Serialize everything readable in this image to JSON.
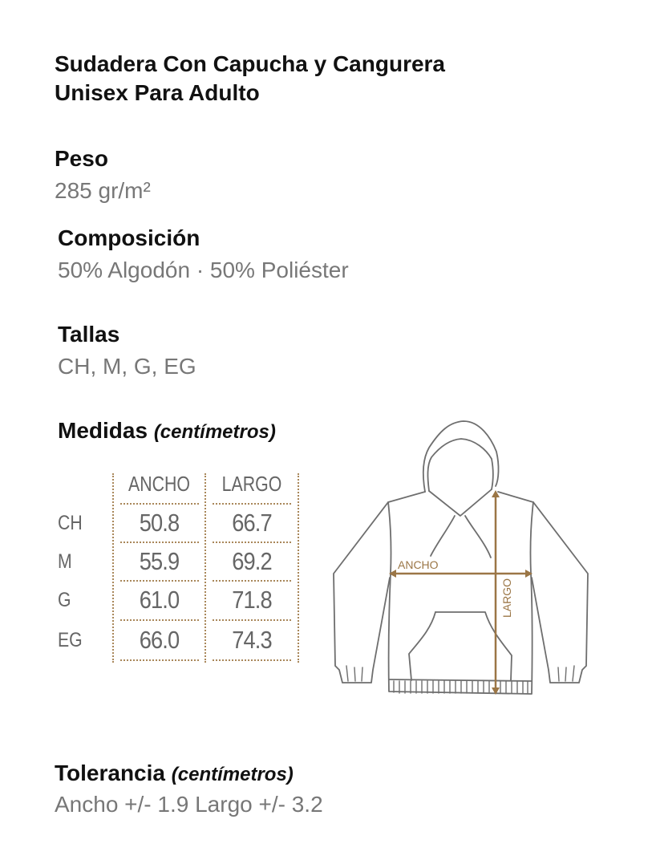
{
  "title_lines": [
    "Sudadera Con Capucha y Cangurera",
    "Unisex Para Adulto"
  ],
  "peso": {
    "label": "Peso",
    "value": "285 gr/m²"
  },
  "composicion": {
    "label": "Composición",
    "value": "50% Algodón · 50% Poliéster"
  },
  "tallas": {
    "label": "Tallas",
    "value": "CH, M, G, EG"
  },
  "medidas": {
    "label": "Medidas",
    "unit": "(centímetros)",
    "columns": [
      "ANCHO",
      "LARGO"
    ],
    "rows": [
      {
        "size": "CH",
        "ancho": "50.8",
        "largo": "66.7"
      },
      {
        "size": "M",
        "ancho": "55.9",
        "largo": "69.2"
      },
      {
        "size": "G",
        "ancho": "61.0",
        "largo": "71.8"
      },
      {
        "size": "EG",
        "ancho": "66.0",
        "largo": "74.3"
      }
    ]
  },
  "diagram": {
    "ancho_label": "ANCHO",
    "largo_label": "LARGO",
    "accent_color": "#9b7646",
    "line_color": "#6e6e6e"
  },
  "tolerancia": {
    "label": "Tolerancia",
    "unit": "(centímetros)",
    "value": "Ancho +/- 1.9 Largo +/- 3.2"
  }
}
